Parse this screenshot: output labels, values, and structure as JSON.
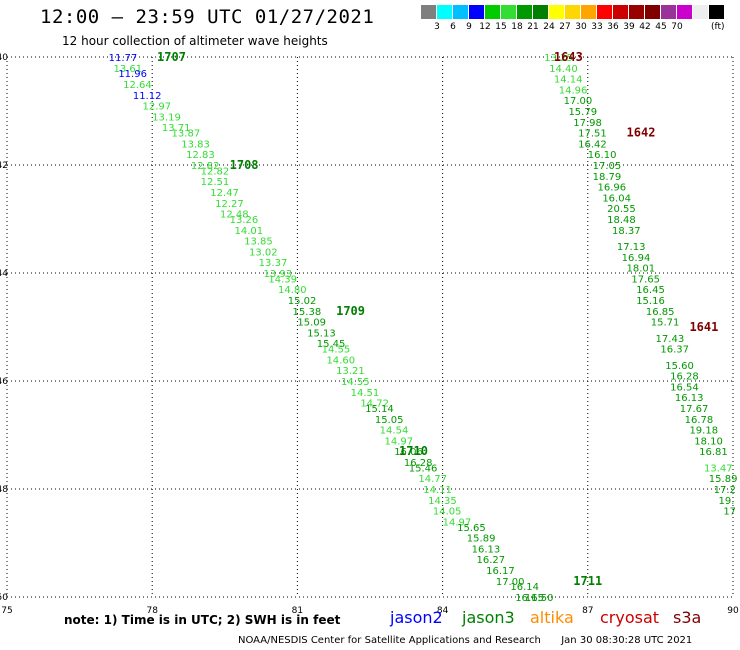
{
  "header": {
    "title": "12:00 – 23:59 UTC 01/27/2021",
    "subtitle": "12 hour collection of altimeter wave heights"
  },
  "scale": {
    "colors": [
      "#7f7f7f",
      "#00ffff",
      "#00bfff",
      "#0000ff",
      "#00cc00",
      "#33dd33",
      "#009900",
      "#008000",
      "#ffff00",
      "#ffd700",
      "#ffa500",
      "#ff0000",
      "#cc0000",
      "#990000",
      "#800000",
      "#993399",
      "#cc00cc",
      "#eeeeee",
      "#000000"
    ],
    "labels": [
      "3",
      "6",
      "9",
      "12",
      "15",
      "18",
      "21",
      "24",
      "27",
      "30",
      "33",
      "36",
      "39",
      "42",
      "45",
      "70"
    ],
    "unit": "(ft)"
  },
  "chart_data": {
    "type": "map",
    "x_axis": {
      "ticks": [
        75,
        78,
        81,
        84,
        87,
        90
      ],
      "labels": [
        "75",
        "78",
        "81",
        "84",
        "87",
        "90"
      ],
      "range": [
        75,
        90
      ]
    },
    "y_axis": {
      "ticks": [
        -40,
        -42,
        -44,
        -46,
        -48,
        -50
      ],
      "labels": [
        "-40",
        "-42",
        "-44",
        "-46",
        "-48",
        "-50"
      ],
      "range": [
        -50,
        -40
      ]
    },
    "grid": true,
    "passes": [
      {
        "time": "1707",
        "lon": 78.1,
        "lat": -40.0,
        "color": "#008000"
      },
      {
        "time": "1708",
        "lon": 79.6,
        "lat": -42.0,
        "color": "#008000"
      },
      {
        "time": "1709",
        "lon": 81.8,
        "lat": -44.7,
        "color": "#008000"
      },
      {
        "time": "1710",
        "lon": 83.1,
        "lat": -47.3,
        "color": "#008000"
      },
      {
        "time": "1711",
        "lon": 86.7,
        "lat": -49.7,
        "color": "#008000"
      },
      {
        "time": "1643",
        "lon": 86.3,
        "lat": -40.0,
        "color": "#800000"
      },
      {
        "time": "1642",
        "lon": 87.8,
        "lat": -41.4,
        "color": "#800000"
      },
      {
        "time": "1641",
        "lon": 89.1,
        "lat": -45.0,
        "color": "#800000"
      }
    ],
    "observations": [
      {
        "v": "11.77",
        "lon": 77.1,
        "lat": -40.0,
        "c": "#0000ff"
      },
      {
        "v": "13.61",
        "lon": 77.2,
        "lat": -40.2,
        "c": "#33dd33"
      },
      {
        "v": "11.96",
        "lon": 77.3,
        "lat": -40.3,
        "c": "#0000ff"
      },
      {
        "v": "12.64",
        "lon": 77.4,
        "lat": -40.5,
        "c": "#33dd33"
      },
      {
        "v": "11.12",
        "lon": 77.6,
        "lat": -40.7,
        "c": "#0000ff"
      },
      {
        "v": "12.97",
        "lon": 77.8,
        "lat": -40.9,
        "c": "#33dd33"
      },
      {
        "v": "13.19",
        "lon": 78.0,
        "lat": -41.1,
        "c": "#33dd33"
      },
      {
        "v": "13.71",
        "lon": 78.2,
        "lat": -41.3,
        "c": "#33dd33"
      },
      {
        "v": "13.87",
        "lon": 78.4,
        "lat": -41.4,
        "c": "#33dd33"
      },
      {
        "v": "13.83",
        "lon": 78.6,
        "lat": -41.6,
        "c": "#33dd33"
      },
      {
        "v": "12.83",
        "lon": 78.7,
        "lat": -41.8,
        "c": "#33dd33"
      },
      {
        "v": "12.82",
        "lon": 78.8,
        "lat": -42.0,
        "c": "#33dd33"
      },
      {
        "v": "12.82",
        "lon": 79.0,
        "lat": -42.1,
        "c": "#33dd33"
      },
      {
        "v": "12.51",
        "lon": 79.0,
        "lat": -42.3,
        "c": "#33dd33"
      },
      {
        "v": "12.47",
        "lon": 79.2,
        "lat": -42.5,
        "c": "#33dd33"
      },
      {
        "v": "12.27",
        "lon": 79.3,
        "lat": -42.7,
        "c": "#33dd33"
      },
      {
        "v": "12.48",
        "lon": 79.4,
        "lat": -42.9,
        "c": "#33dd33"
      },
      {
        "v": "13.26",
        "lon": 79.6,
        "lat": -43.0,
        "c": "#33dd33"
      },
      {
        "v": "14.01",
        "lon": 79.7,
        "lat": -43.2,
        "c": "#33dd33"
      },
      {
        "v": "13.85",
        "lon": 79.9,
        "lat": -43.4,
        "c": "#33dd33"
      },
      {
        "v": "13.02",
        "lon": 80.0,
        "lat": -43.6,
        "c": "#33dd33"
      },
      {
        "v": "13.37",
        "lon": 80.2,
        "lat": -43.8,
        "c": "#33dd33"
      },
      {
        "v": "13.93",
        "lon": 80.3,
        "lat": -44.0,
        "c": "#33dd33"
      },
      {
        "v": "14.39",
        "lon": 80.4,
        "lat": -44.1,
        "c": "#33dd33"
      },
      {
        "v": "14.80",
        "lon": 80.6,
        "lat": -44.3,
        "c": "#33dd33"
      },
      {
        "v": "15.02",
        "lon": 80.8,
        "lat": -44.5,
        "c": "#009900"
      },
      {
        "v": "15.38",
        "lon": 80.9,
        "lat": -44.7,
        "c": "#009900"
      },
      {
        "v": "15.09",
        "lon": 81.0,
        "lat": -44.9,
        "c": "#009900"
      },
      {
        "v": "15.13",
        "lon": 81.2,
        "lat": -45.1,
        "c": "#009900"
      },
      {
        "v": "15.45",
        "lon": 81.4,
        "lat": -45.3,
        "c": "#009900"
      },
      {
        "v": "14.55",
        "lon": 81.5,
        "lat": -45.4,
        "c": "#33dd33"
      },
      {
        "v": "14.60",
        "lon": 81.6,
        "lat": -45.6,
        "c": "#33dd33"
      },
      {
        "v": "13.21",
        "lon": 81.8,
        "lat": -45.8,
        "c": "#33dd33"
      },
      {
        "v": "14.55",
        "lon": 81.9,
        "lat": -46.0,
        "c": "#33dd33"
      },
      {
        "v": "14.51",
        "lon": 82.1,
        "lat": -46.2,
        "c": "#33dd33"
      },
      {
        "v": "14.72",
        "lon": 82.3,
        "lat": -46.4,
        "c": "#33dd33"
      },
      {
        "v": "15.14",
        "lon": 82.4,
        "lat": -46.5,
        "c": "#009900"
      },
      {
        "v": "15.05",
        "lon": 82.6,
        "lat": -46.7,
        "c": "#009900"
      },
      {
        "v": "14.54",
        "lon": 82.7,
        "lat": -46.9,
        "c": "#33dd33"
      },
      {
        "v": "14.97",
        "lon": 82.8,
        "lat": -47.1,
        "c": "#33dd33"
      },
      {
        "v": "16.06",
        "lon": 83.0,
        "lat": -47.3,
        "c": "#009900"
      },
      {
        "v": "16.28",
        "lon": 83.2,
        "lat": -47.5,
        "c": "#009900"
      },
      {
        "v": "15.46",
        "lon": 83.3,
        "lat": -47.6,
        "c": "#009900"
      },
      {
        "v": "14.77",
        "lon": 83.5,
        "lat": -47.8,
        "c": "#33dd33"
      },
      {
        "v": "14.11",
        "lon": 83.6,
        "lat": -48.0,
        "c": "#33dd33"
      },
      {
        "v": "14.35",
        "lon": 83.7,
        "lat": -48.2,
        "c": "#33dd33"
      },
      {
        "v": "14.05",
        "lon": 83.8,
        "lat": -48.4,
        "c": "#33dd33"
      },
      {
        "v": "14.97",
        "lon": 84.0,
        "lat": -48.6,
        "c": "#33dd33"
      },
      {
        "v": "15.65",
        "lon": 84.3,
        "lat": -48.7,
        "c": "#009900"
      },
      {
        "v": "15.89",
        "lon": 84.5,
        "lat": -48.9,
        "c": "#009900"
      },
      {
        "v": "16.13",
        "lon": 84.6,
        "lat": -49.1,
        "c": "#009900"
      },
      {
        "v": "16.27",
        "lon": 84.7,
        "lat": -49.3,
        "c": "#009900"
      },
      {
        "v": "16.17",
        "lon": 84.9,
        "lat": -49.5,
        "c": "#009900"
      },
      {
        "v": "17.00",
        "lon": 85.1,
        "lat": -49.7,
        "c": "#009900"
      },
      {
        "v": "16.14",
        "lon": 85.4,
        "lat": -49.8,
        "c": "#009900"
      },
      {
        "v": "16.15",
        "lon": 85.5,
        "lat": -50.0,
        "c": "#009900"
      },
      {
        "v": "16.50",
        "lon": 85.7,
        "lat": -50.0,
        "c": "#009900"
      },
      {
        "v": "13.25",
        "lon": 86.1,
        "lat": -40.0,
        "c": "#33dd33"
      },
      {
        "v": "14.40",
        "lon": 86.2,
        "lat": -40.2,
        "c": "#33dd33"
      },
      {
        "v": "14.14",
        "lon": 86.3,
        "lat": -40.4,
        "c": "#33dd33"
      },
      {
        "v": "14.96",
        "lon": 86.4,
        "lat": -40.6,
        "c": "#33dd33"
      },
      {
        "v": "17.00",
        "lon": 86.5,
        "lat": -40.8,
        "c": "#009900"
      },
      {
        "v": "15.79",
        "lon": 86.6,
        "lat": -41.0,
        "c": "#009900"
      },
      {
        "v": "17.98",
        "lon": 86.7,
        "lat": -41.2,
        "c": "#009900"
      },
      {
        "v": "17.51",
        "lon": 86.8,
        "lat": -41.4,
        "c": "#009900"
      },
      {
        "v": "16.42",
        "lon": 86.8,
        "lat": -41.6,
        "c": "#009900"
      },
      {
        "v": "16.10",
        "lon": 87.0,
        "lat": -41.8,
        "c": "#009900"
      },
      {
        "v": "17.05",
        "lon": 87.1,
        "lat": -42.0,
        "c": "#009900"
      },
      {
        "v": "18.79",
        "lon": 87.1,
        "lat": -42.2,
        "c": "#009900"
      },
      {
        "v": "16.96",
        "lon": 87.2,
        "lat": -42.4,
        "c": "#009900"
      },
      {
        "v": "16.04",
        "lon": 87.3,
        "lat": -42.6,
        "c": "#009900"
      },
      {
        "v": "20.55",
        "lon": 87.4,
        "lat": -42.8,
        "c": "#009900"
      },
      {
        "v": "18.48",
        "lon": 87.4,
        "lat": -43.0,
        "c": "#009900"
      },
      {
        "v": "18.37",
        "lon": 87.5,
        "lat": -43.2,
        "c": "#009900"
      },
      {
        "v": "17.13",
        "lon": 87.6,
        "lat": -43.5,
        "c": "#009900"
      },
      {
        "v": "16.94",
        "lon": 87.7,
        "lat": -43.7,
        "c": "#009900"
      },
      {
        "v": "18.01",
        "lon": 87.8,
        "lat": -43.9,
        "c": "#009900"
      },
      {
        "v": "17.65",
        "lon": 87.9,
        "lat": -44.1,
        "c": "#009900"
      },
      {
        "v": "16.45",
        "lon": 88.0,
        "lat": -44.3,
        "c": "#009900"
      },
      {
        "v": "15.16",
        "lon": 88.0,
        "lat": -44.5,
        "c": "#009900"
      },
      {
        "v": "16.85",
        "lon": 88.2,
        "lat": -44.7,
        "c": "#009900"
      },
      {
        "v": "15.71",
        "lon": 88.3,
        "lat": -44.9,
        "c": "#009900"
      },
      {
        "v": "17.43",
        "lon": 88.4,
        "lat": -45.2,
        "c": "#009900"
      },
      {
        "v": "16.37",
        "lon": 88.5,
        "lat": -45.4,
        "c": "#009900"
      },
      {
        "v": "15.60",
        "lon": 88.6,
        "lat": -45.7,
        "c": "#009900"
      },
      {
        "v": "16.28",
        "lon": 88.7,
        "lat": -45.9,
        "c": "#009900"
      },
      {
        "v": "16.54",
        "lon": 88.7,
        "lat": -46.1,
        "c": "#009900"
      },
      {
        "v": "16.13",
        "lon": 88.8,
        "lat": -46.3,
        "c": "#009900"
      },
      {
        "v": "17.67",
        "lon": 88.9,
        "lat": -46.5,
        "c": "#009900"
      },
      {
        "v": "16.78",
        "lon": 89.0,
        "lat": -46.7,
        "c": "#009900"
      },
      {
        "v": "19.18",
        "lon": 89.1,
        "lat": -46.9,
        "c": "#009900"
      },
      {
        "v": "18.10",
        "lon": 89.2,
        "lat": -47.1,
        "c": "#009900"
      },
      {
        "v": "16.81",
        "lon": 89.3,
        "lat": -47.3,
        "c": "#009900"
      },
      {
        "v": "13.47",
        "lon": 89.4,
        "lat": -47.6,
        "c": "#33dd33"
      },
      {
        "v": "15.89",
        "lon": 89.5,
        "lat": -47.8,
        "c": "#009900"
      },
      {
        "v": "17.2",
        "lon": 89.6,
        "lat": -48.0,
        "c": "#009900"
      },
      {
        "v": "19.",
        "lon": 89.7,
        "lat": -48.2,
        "c": "#009900"
      },
      {
        "v": "17",
        "lon": 89.8,
        "lat": -48.4,
        "c": "#009900"
      }
    ]
  },
  "footer": {
    "note": "note:  1) Time is in UTC; 2) SWH is in feet",
    "satellites": [
      {
        "name": "jason2",
        "color": "#0000ff"
      },
      {
        "name": "jason3",
        "color": "#008000"
      },
      {
        "name": "altika",
        "color": "#ff8c00"
      },
      {
        "name": "cryosat",
        "color": "#cc0000"
      },
      {
        "name": "s3a",
        "color": "#800000"
      }
    ],
    "credit": "NOAA/NESDIS Center for Satellite Applications and Research",
    "timestamp": "Jan 30 08:30:28 UTC 2021"
  }
}
